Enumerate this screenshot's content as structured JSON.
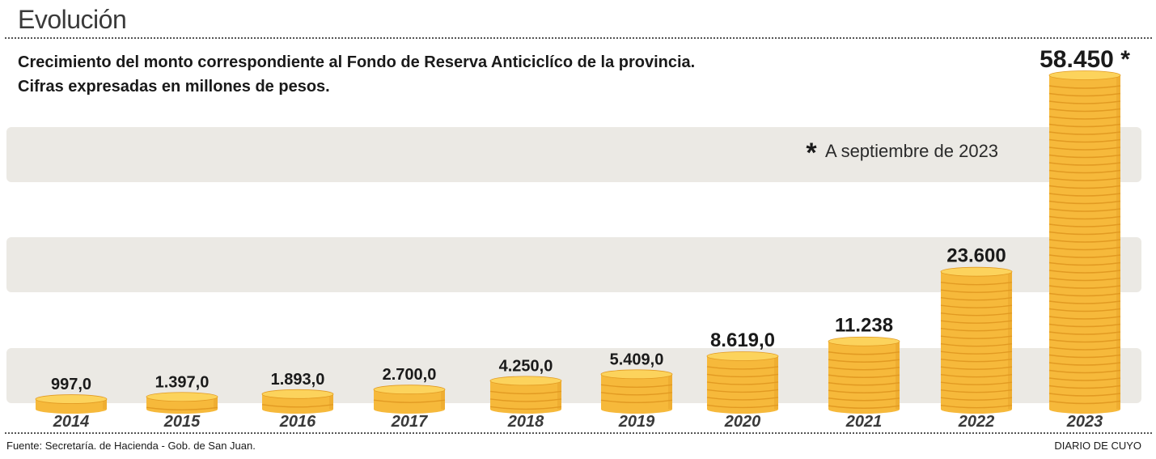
{
  "header": {
    "title": "Evolución",
    "subtitle_line1": "Crecimiento del monto correspondiente al Fondo de Reserva Anticiclíco de la provincia.",
    "subtitle_line2": "Cifras expresadas en millones de pesos."
  },
  "footnote": {
    "symbol": "*",
    "text": "A septiembre de 2023"
  },
  "footer": {
    "source": "Fuente: Secretaría. de Hacienda - Gob. de San Juan.",
    "credit": "DIARIO DE CUYO"
  },
  "colors": {
    "coin_face": "#f6b93b",
    "coin_top": "#fcd35c",
    "coin_shadow": "#e29a22",
    "band": "#ebe9e4"
  },
  "chart_data": {
    "type": "bar",
    "categories": [
      "2014",
      "2015",
      "2016",
      "2017",
      "2018",
      "2019",
      "2020",
      "2021",
      "2022",
      "2023"
    ],
    "values": [
      997.0,
      1397.0,
      1893.0,
      2700.0,
      4250.0,
      5409.0,
      8619.0,
      11238,
      23600,
      58450
    ],
    "value_labels": [
      "997,0",
      "1.397,0",
      "1.893,0",
      "2.700,0",
      "4.250,0",
      "5.409,0",
      "8.619,0",
      "11.238",
      "23.600",
      "58.450 *"
    ],
    "title": "Evolución",
    "xlabel": "",
    "ylabel": "",
    "ylim": [
      0,
      58450
    ],
    "grid": false,
    "legend": "none"
  }
}
